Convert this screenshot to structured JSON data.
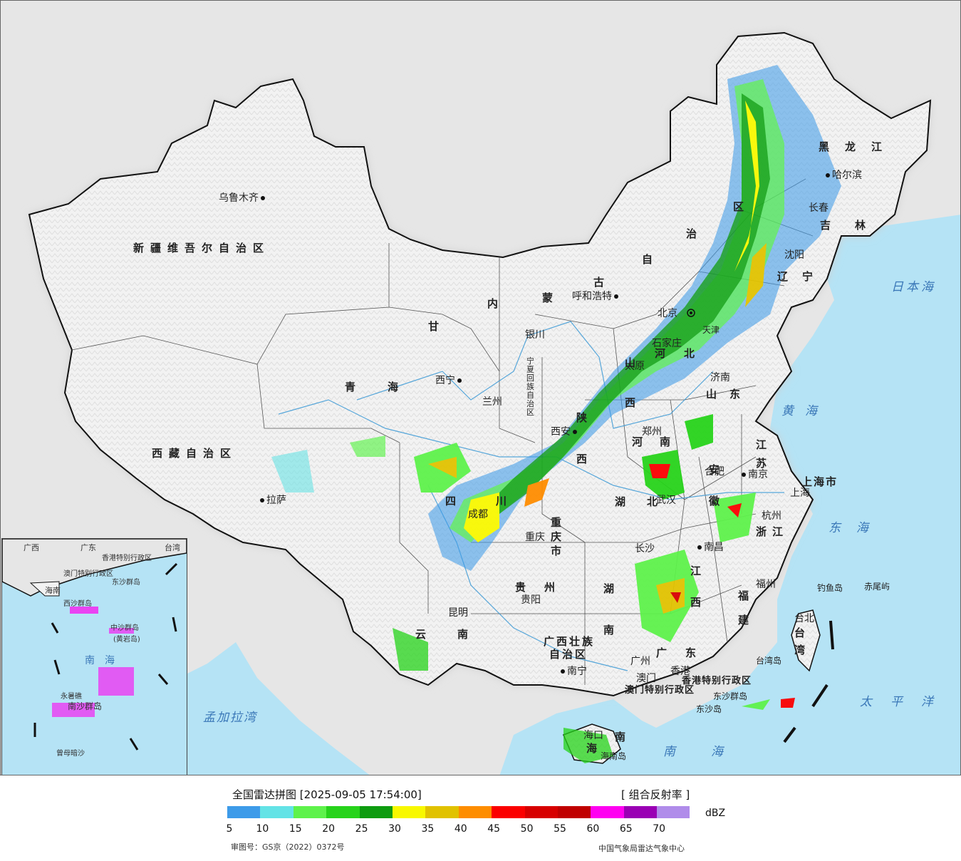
{
  "header": {
    "title": "全国雷达拼图 [2025-09-05 17:54:00]",
    "product": "[ 组合反射率 ]",
    "unit": "dBZ"
  },
  "legend": {
    "ticks": [
      "5",
      "10",
      "15",
      "20",
      "25",
      "30",
      "35",
      "40",
      "45",
      "50",
      "55",
      "60",
      "65",
      "70"
    ],
    "colors": [
      "#3d9be9",
      "#63e3e6",
      "#5ef24b",
      "#27d31b",
      "#0e9c10",
      "#f8f800",
      "#e1c200",
      "#fe8d00",
      "#fb0000",
      "#d70000",
      "#c00000",
      "#ff00f1",
      "#9a00b4",
      "#b08cea"
    ]
  },
  "footer": {
    "review_number": "审图号：GS京（2022）0372号",
    "agency": "中国气象局雷达气象中心"
  },
  "map": {
    "provinces": {
      "xinjiang": "新疆维吾尔自治区",
      "xizang": "西藏自治区",
      "qinghai": "青海",
      "gansu": "甘",
      "neimenggu_1": "内",
      "neimenggu_2": "蒙",
      "neimenggu_3": "古",
      "neimenggu_4": "自",
      "neimenggu_5": "治",
      "neimenggu_6": "区",
      "heilongjiang": "黑龙江",
      "jilin": "吉林",
      "liaoning": "辽宁",
      "hebei": "河北",
      "shanxi": "山西",
      "shaanxi": "陕西",
      "ningxia": "宁夏回族自治区",
      "sichuan": "四川",
      "chongqing": "重庆市",
      "guizhou": "贵州",
      "yunnan": "云南",
      "henan": "河南",
      "hubei": "湖北",
      "hunan": "湖南",
      "shandong": "山东",
      "jiangsu": "江苏",
      "anhui": "安徽",
      "zhejiang": "浙江",
      "jiangxi": "江西",
      "fujian": "福建",
      "guangdong": "广东",
      "guangxi_1": "广西壮族",
      "guangxi_2": "自治区",
      "hainan_1": "海",
      "hainan_2": "南",
      "shanghai": "上海市",
      "hongkong": "香港特别行政区",
      "macao": "澳门特别行政区",
      "taiwan_1": "台",
      "taiwan_2": "湾"
    },
    "cities": {
      "urumqi": "乌鲁木齐",
      "lhasa": "拉萨",
      "xining": "西宁",
      "lanzhou": "兰州",
      "yinchuan": "银川",
      "hohhot": "呼和浩特",
      "beijing": "北京",
      "tianjin": "天津",
      "shijiazhuang": "石家庄",
      "taiyuan": "太原",
      "xian": "西安",
      "zhengzhou": "郑州",
      "jinan": "济南",
      "shenyang": "沈阳",
      "changchun": "长春",
      "harbin": "哈尔滨",
      "chengdu": "成都",
      "chongqing": "重庆",
      "guiyang": "贵阳",
      "kunming": "昆明",
      "nanning": "南宁",
      "guangzhou": "广州",
      "hongkong": "香港",
      "macao": "澳门",
      "haikou": "海口",
      "changsha": "长沙",
      "wuhan": "武汉",
      "hefei": "合肥",
      "nanjing": "南京",
      "shanghai": "上海",
      "hangzhou": "杭州",
      "nanchang": "南昌",
      "fuzhou": "福州",
      "taipei": "台北"
    },
    "islands": {
      "diaoyu": "钓鱼岛",
      "chiwei": "赤尾屿",
      "taiwan_island": "台湾岛",
      "dongsha_qundao": "东沙群岛",
      "dongsha_dao": "东沙岛",
      "hainan_dao": "海南岛"
    },
    "seas": {
      "japan_sea": "日本海",
      "yellow_sea": "黄海",
      "east_sea": "东海",
      "pacific": "太平洋",
      "south_sea": "南海",
      "bengal": "孟加拉湾"
    },
    "inset": {
      "guangdong": "广东",
      "guangxi": "广西",
      "hainan": "海南",
      "taiwan": "台湾",
      "hk": "香港特别行政区",
      "macao": "澳门特别行政区",
      "dongsha": "东沙群岛",
      "xisha": "西沙群岛",
      "zhongsha": "中沙群岛",
      "huangyan": "(黄岩岛)",
      "nansha": "南沙群岛",
      "south_sea": "南海",
      "yongshu": "永暑礁",
      "zengmu": "曾母暗沙"
    }
  }
}
